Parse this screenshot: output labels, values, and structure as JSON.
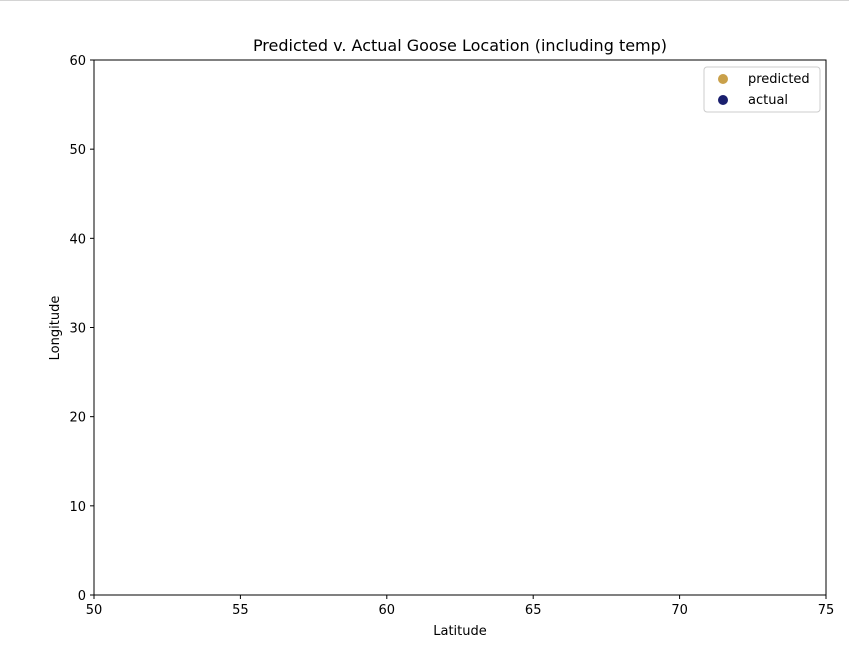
{
  "chart_data": {
    "type": "scatter",
    "title": "Predicted v. Actual Goose Location (including temp)",
    "xlabel": "Latitude",
    "ylabel": "Longitude",
    "xlim": [
      50,
      75
    ],
    "ylim": [
      0,
      60
    ],
    "xticks": [
      "50",
      "55",
      "60",
      "65",
      "70",
      "75"
    ],
    "yticks": [
      "0",
      "10",
      "20",
      "30",
      "40",
      "50",
      "60"
    ],
    "grid": false,
    "legend_position": "top-right",
    "series": [
      {
        "name": "predicted",
        "color": "#c9a04a",
        "x": [],
        "y": []
      },
      {
        "name": "actual",
        "color": "#1a1f6e",
        "x": [],
        "y": []
      }
    ]
  }
}
